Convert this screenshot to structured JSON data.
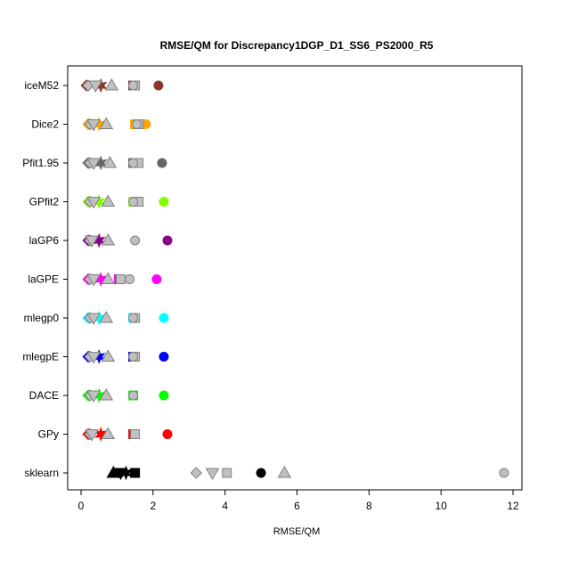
{
  "chart_data": {
    "type": "scatter",
    "title": "RMSE/QM for Discrepancy1DGP_D1_SS6_PS2000_R5",
    "xlabel": "RMSE/QM",
    "ylabel": "",
    "xlim": [
      0,
      12
    ],
    "xticks": [
      "0",
      "2",
      "4",
      "6",
      "8",
      "10",
      "12"
    ],
    "categories": [
      "iceM52",
      "Dice2",
      "Pfit1.95",
      "GPfit2",
      "laGP6",
      "laGPE",
      "mlegp0",
      "mlegpE",
      "DACE",
      "GPy",
      "sklearn"
    ],
    "symbols": [
      "diamond",
      "star",
      "triangle-down",
      "triangle-up",
      "square",
      "circle"
    ],
    "colors": {
      "iceM52": "#8B3A2A",
      "Dice2": "#FFA500",
      "Pfit1.95": "#666666",
      "GPfit2": "#7FFF00",
      "laGP6": "#8B008B",
      "laGPE": "#FF00FF",
      "mlegp0": "#00FFFF",
      "mlegpE": "#0000FF",
      "DACE": "#00FF00",
      "GPy": "#FF0000",
      "sklearn": "#000000",
      "light_fill": "#C0C0C0",
      "light_outline": "#808080"
    },
    "series": [
      {
        "category": "iceM52",
        "solid": [
          0.15,
          0.55,
          1.45,
          2.15
        ],
        "light": [
          0.2,
          0.4,
          0.85,
          1.5,
          1.45
        ]
      },
      {
        "category": "Dice2",
        "solid": [
          0.2,
          0.5,
          1.5,
          1.8
        ],
        "light": [
          0.25,
          0.35,
          0.7,
          1.55,
          1.6
        ]
      },
      {
        "category": "Pfit1.95",
        "solid": [
          0.2,
          0.55,
          1.45,
          2.25
        ],
        "light": [
          0.25,
          0.35,
          0.8,
          1.6,
          1.45
        ]
      },
      {
        "category": "GPfit2",
        "solid": [
          0.2,
          0.5,
          1.45,
          2.3
        ],
        "light": [
          0.25,
          0.35,
          0.75,
          1.6,
          1.45
        ]
      },
      {
        "category": "laGP6",
        "solid": [
          0.2,
          0.5,
          2.4
        ],
        "light": [
          0.25,
          0.3,
          0.75,
          1.5
        ]
      },
      {
        "category": "laGPE",
        "solid": [
          0.2,
          0.55,
          1.05,
          2.1
        ],
        "light": [
          0.25,
          0.35,
          0.75,
          1.1,
          1.35
        ]
      },
      {
        "category": "mlegp0",
        "solid": [
          0.2,
          0.5,
          1.45,
          2.3
        ],
        "light": [
          0.25,
          0.35,
          0.7,
          1.5,
          1.45
        ]
      },
      {
        "category": "mlegpE",
        "solid": [
          0.2,
          0.5,
          1.45,
          2.3
        ],
        "light": [
          0.25,
          0.35,
          0.75,
          1.5,
          1.45
        ]
      },
      {
        "category": "DACE",
        "solid": [
          0.2,
          0.5,
          1.45,
          2.3
        ],
        "light": [
          0.25,
          0.35,
          0.7,
          1.45
        ]
      },
      {
        "category": "GPy",
        "solid": [
          0.2,
          0.55,
          1.45,
          2.4
        ],
        "light": [
          0.25,
          0.3,
          0.75,
          1.5
        ]
      },
      {
        "category": "sklearn",
        "solid": [
          0.9,
          1.1,
          1.25,
          1.5,
          5.0
        ],
        "light": [
          3.2,
          3.65,
          4.05,
          5.65,
          11.75
        ]
      }
    ],
    "markers": [
      {
        "category": "iceM52",
        "x": 0.15,
        "symbol": "diamond",
        "tone": "solid"
      },
      {
        "category": "iceM52",
        "x": 0.55,
        "symbol": "star",
        "tone": "solid"
      },
      {
        "category": "iceM52",
        "x": 1.45,
        "symbol": "square",
        "tone": "solid"
      },
      {
        "category": "iceM52",
        "x": 2.15,
        "symbol": "circle",
        "tone": "solid"
      },
      {
        "category": "iceM52",
        "x": 0.2,
        "symbol": "diamond",
        "tone": "light"
      },
      {
        "category": "iceM52",
        "x": 0.4,
        "symbol": "triangle-down",
        "tone": "light"
      },
      {
        "category": "iceM52",
        "x": 0.85,
        "symbol": "triangle-up",
        "tone": "light"
      },
      {
        "category": "iceM52",
        "x": 1.5,
        "symbol": "square",
        "tone": "light"
      },
      {
        "category": "iceM52",
        "x": 1.45,
        "symbol": "circle",
        "tone": "light"
      },
      {
        "category": "Dice2",
        "x": 0.2,
        "symbol": "diamond",
        "tone": "solid"
      },
      {
        "category": "Dice2",
        "x": 0.5,
        "symbol": "star",
        "tone": "solid"
      },
      {
        "category": "Dice2",
        "x": 1.5,
        "symbol": "square",
        "tone": "solid"
      },
      {
        "category": "Dice2",
        "x": 1.8,
        "symbol": "circle",
        "tone": "solid"
      },
      {
        "category": "Dice2",
        "x": 0.25,
        "symbol": "diamond",
        "tone": "light"
      },
      {
        "category": "Dice2",
        "x": 0.35,
        "symbol": "triangle-down",
        "tone": "light"
      },
      {
        "category": "Dice2",
        "x": 0.7,
        "symbol": "triangle-up",
        "tone": "light"
      },
      {
        "category": "Dice2",
        "x": 1.6,
        "symbol": "square",
        "tone": "light"
      },
      {
        "category": "Dice2",
        "x": 1.55,
        "symbol": "circle",
        "tone": "light"
      },
      {
        "category": "Pfit1.95",
        "x": 0.2,
        "symbol": "diamond",
        "tone": "solid"
      },
      {
        "category": "Pfit1.95",
        "x": 0.55,
        "symbol": "star",
        "tone": "solid"
      },
      {
        "category": "Pfit1.95",
        "x": 1.45,
        "symbol": "square",
        "tone": "solid"
      },
      {
        "category": "Pfit1.95",
        "x": 2.25,
        "symbol": "circle",
        "tone": "solid"
      },
      {
        "category": "Pfit1.95",
        "x": 0.25,
        "symbol": "diamond",
        "tone": "light"
      },
      {
        "category": "Pfit1.95",
        "x": 0.35,
        "symbol": "triangle-down",
        "tone": "light"
      },
      {
        "category": "Pfit1.95",
        "x": 0.8,
        "symbol": "triangle-up",
        "tone": "light"
      },
      {
        "category": "Pfit1.95",
        "x": 1.6,
        "symbol": "square",
        "tone": "light"
      },
      {
        "category": "Pfit1.95",
        "x": 1.45,
        "symbol": "circle",
        "tone": "light"
      },
      {
        "category": "GPfit2",
        "x": 0.2,
        "symbol": "diamond",
        "tone": "solid"
      },
      {
        "category": "GPfit2",
        "x": 0.5,
        "symbol": "star",
        "tone": "solid"
      },
      {
        "category": "GPfit2",
        "x": 1.45,
        "symbol": "square",
        "tone": "solid"
      },
      {
        "category": "GPfit2",
        "x": 2.3,
        "symbol": "circle",
        "tone": "solid"
      },
      {
        "category": "GPfit2",
        "x": 0.25,
        "symbol": "diamond",
        "tone": "light"
      },
      {
        "category": "GPfit2",
        "x": 0.35,
        "symbol": "triangle-down",
        "tone": "light"
      },
      {
        "category": "GPfit2",
        "x": 0.75,
        "symbol": "triangle-up",
        "tone": "light"
      },
      {
        "category": "GPfit2",
        "x": 1.6,
        "symbol": "square",
        "tone": "light"
      },
      {
        "category": "GPfit2",
        "x": 1.45,
        "symbol": "circle",
        "tone": "light"
      },
      {
        "category": "laGP6",
        "x": 0.2,
        "symbol": "diamond",
        "tone": "solid"
      },
      {
        "category": "laGP6",
        "x": 0.5,
        "symbol": "star",
        "tone": "solid"
      },
      {
        "category": "laGP6",
        "x": 2.4,
        "symbol": "circle",
        "tone": "solid"
      },
      {
        "category": "laGP6",
        "x": 0.25,
        "symbol": "diamond",
        "tone": "light"
      },
      {
        "category": "laGP6",
        "x": 0.3,
        "symbol": "triangle-down",
        "tone": "light"
      },
      {
        "category": "laGP6",
        "x": 0.75,
        "symbol": "triangle-up",
        "tone": "light"
      },
      {
        "category": "laGP6",
        "x": 1.5,
        "symbol": "circle",
        "tone": "light"
      },
      {
        "category": "laGPE",
        "x": 0.2,
        "symbol": "diamond",
        "tone": "solid"
      },
      {
        "category": "laGPE",
        "x": 0.55,
        "symbol": "star",
        "tone": "solid"
      },
      {
        "category": "laGPE",
        "x": 1.05,
        "symbol": "square",
        "tone": "solid"
      },
      {
        "category": "laGPE",
        "x": 2.1,
        "symbol": "circle",
        "tone": "solid"
      },
      {
        "category": "laGPE",
        "x": 0.25,
        "symbol": "diamond",
        "tone": "light"
      },
      {
        "category": "laGPE",
        "x": 0.35,
        "symbol": "triangle-down",
        "tone": "light"
      },
      {
        "category": "laGPE",
        "x": 0.75,
        "symbol": "triangle-up",
        "tone": "light"
      },
      {
        "category": "laGPE",
        "x": 1.1,
        "symbol": "square",
        "tone": "light"
      },
      {
        "category": "laGPE",
        "x": 1.35,
        "symbol": "circle",
        "tone": "light"
      },
      {
        "category": "mlegp0",
        "x": 0.2,
        "symbol": "diamond",
        "tone": "solid"
      },
      {
        "category": "mlegp0",
        "x": 0.5,
        "symbol": "star",
        "tone": "solid"
      },
      {
        "category": "mlegp0",
        "x": 1.45,
        "symbol": "square",
        "tone": "solid"
      },
      {
        "category": "mlegp0",
        "x": 2.3,
        "symbol": "circle",
        "tone": "solid"
      },
      {
        "category": "mlegp0",
        "x": 0.25,
        "symbol": "diamond",
        "tone": "light"
      },
      {
        "category": "mlegp0",
        "x": 0.35,
        "symbol": "triangle-down",
        "tone": "light"
      },
      {
        "category": "mlegp0",
        "x": 0.7,
        "symbol": "triangle-up",
        "tone": "light"
      },
      {
        "category": "mlegp0",
        "x": 1.5,
        "symbol": "square",
        "tone": "light"
      },
      {
        "category": "mlegp0",
        "x": 1.45,
        "symbol": "circle",
        "tone": "light"
      },
      {
        "category": "mlegpE",
        "x": 0.2,
        "symbol": "diamond",
        "tone": "solid"
      },
      {
        "category": "mlegpE",
        "x": 0.5,
        "symbol": "star",
        "tone": "solid"
      },
      {
        "category": "mlegpE",
        "x": 1.45,
        "symbol": "square",
        "tone": "solid"
      },
      {
        "category": "mlegpE",
        "x": 2.3,
        "symbol": "circle",
        "tone": "solid"
      },
      {
        "category": "mlegpE",
        "x": 0.25,
        "symbol": "diamond",
        "tone": "light"
      },
      {
        "category": "mlegpE",
        "x": 0.35,
        "symbol": "triangle-down",
        "tone": "light"
      },
      {
        "category": "mlegpE",
        "x": 0.75,
        "symbol": "triangle-up",
        "tone": "light"
      },
      {
        "category": "mlegpE",
        "x": 1.5,
        "symbol": "square",
        "tone": "light"
      },
      {
        "category": "mlegpE",
        "x": 1.45,
        "symbol": "circle",
        "tone": "light"
      },
      {
        "category": "DACE",
        "x": 0.2,
        "symbol": "diamond",
        "tone": "solid"
      },
      {
        "category": "DACE",
        "x": 0.5,
        "symbol": "star",
        "tone": "solid"
      },
      {
        "category": "DACE",
        "x": 1.45,
        "symbol": "square",
        "tone": "solid"
      },
      {
        "category": "DACE",
        "x": 2.3,
        "symbol": "circle",
        "tone": "solid"
      },
      {
        "category": "DACE",
        "x": 0.25,
        "symbol": "diamond",
        "tone": "light"
      },
      {
        "category": "DACE",
        "x": 0.35,
        "symbol": "triangle-down",
        "tone": "light"
      },
      {
        "category": "DACE",
        "x": 0.7,
        "symbol": "triangle-up",
        "tone": "light"
      },
      {
        "category": "DACE",
        "x": 1.45,
        "symbol": "circle",
        "tone": "light"
      },
      {
        "category": "GPy",
        "x": 0.2,
        "symbol": "diamond",
        "tone": "solid"
      },
      {
        "category": "GPy",
        "x": 0.55,
        "symbol": "star",
        "tone": "solid"
      },
      {
        "category": "GPy",
        "x": 1.45,
        "symbol": "square",
        "tone": "solid"
      },
      {
        "category": "GPy",
        "x": 2.4,
        "symbol": "circle",
        "tone": "solid"
      },
      {
        "category": "GPy",
        "x": 0.25,
        "symbol": "diamond",
        "tone": "light"
      },
      {
        "category": "GPy",
        "x": 0.3,
        "symbol": "triangle-down",
        "tone": "light"
      },
      {
        "category": "GPy",
        "x": 0.75,
        "symbol": "triangle-up",
        "tone": "light"
      },
      {
        "category": "GPy",
        "x": 1.5,
        "symbol": "square",
        "tone": "light"
      },
      {
        "category": "sklearn",
        "x": 0.9,
        "symbol": "triangle-up",
        "tone": "solid"
      },
      {
        "category": "sklearn",
        "x": 1.1,
        "symbol": "triangle-down",
        "tone": "solid"
      },
      {
        "category": "sklearn",
        "x": 1.25,
        "symbol": "star",
        "tone": "solid"
      },
      {
        "category": "sklearn",
        "x": 1.5,
        "symbol": "square",
        "tone": "solid"
      },
      {
        "category": "sklearn",
        "x": 5.0,
        "symbol": "circle",
        "tone": "solid"
      },
      {
        "category": "sklearn",
        "x": 3.2,
        "symbol": "diamond",
        "tone": "light"
      },
      {
        "category": "sklearn",
        "x": 3.65,
        "symbol": "triangle-down",
        "tone": "light"
      },
      {
        "category": "sklearn",
        "x": 4.05,
        "symbol": "square",
        "tone": "light"
      },
      {
        "category": "sklearn",
        "x": 5.65,
        "symbol": "triangle-up",
        "tone": "light"
      },
      {
        "category": "sklearn",
        "x": 11.75,
        "symbol": "circle",
        "tone": "light"
      }
    ],
    "grid": false,
    "legend": "none"
  }
}
